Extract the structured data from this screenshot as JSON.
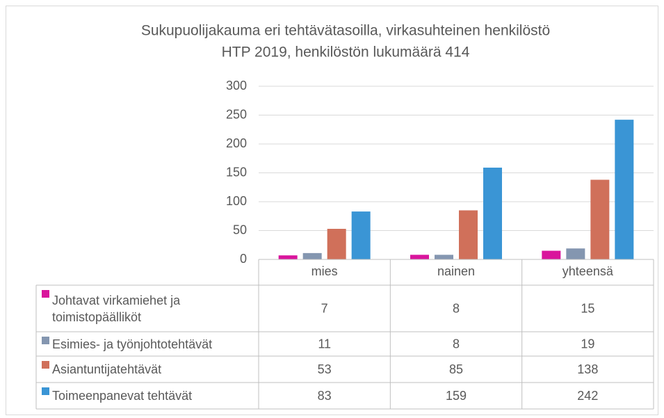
{
  "chart_data": {
    "type": "bar",
    "title": "Sukupuolijakauma eri tehtävätasoilla, virkasuhteinen henkilöstö",
    "subtitle": "HTP 2019, henkilöstön lukumäärä 414",
    "categories": [
      "mies",
      "nainen",
      "yhteensä"
    ],
    "series": [
      {
        "name": "Johtavat virkamiehet ja toimistopäälliköt",
        "color": "#d9149c",
        "values": [
          7,
          8,
          15
        ]
      },
      {
        "name": "Esimies- ja työnjohtotehtävät",
        "color": "#8496b0",
        "values": [
          11,
          8,
          19
        ]
      },
      {
        "name": "Asiantuntijatehtävät",
        "color": "#d0705a",
        "values": [
          53,
          85,
          138
        ]
      },
      {
        "name": "Toimeenpanevat tehtävät",
        "color": "#3a95d5",
        "values": [
          83,
          159,
          242
        ]
      }
    ],
    "ylim": [
      0,
      300
    ],
    "yticks": [
      0,
      50,
      100,
      150,
      200,
      250,
      300
    ],
    "grid": true,
    "legend": "table"
  }
}
